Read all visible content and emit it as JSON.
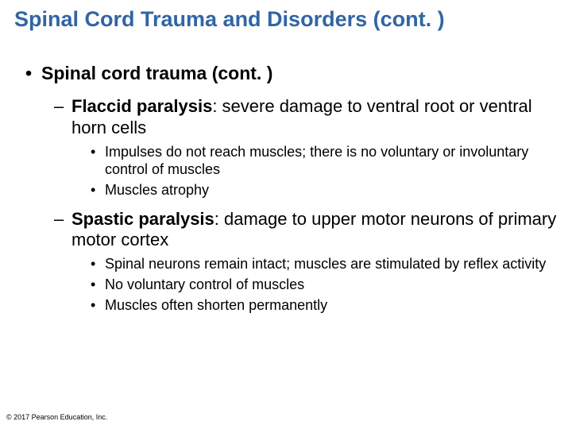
{
  "title": "Spinal Cord Trauma and Disorders (cont. )",
  "level1": {
    "text": "Spinal cord trauma (cont. )"
  },
  "flaccid": {
    "term": "Flaccid paralysis",
    "desc": ": severe damage to ventral root or ventral horn cells",
    "sub": [
      "Impulses do not reach muscles; there is no voluntary or involuntary control of muscles",
      "Muscles atrophy"
    ]
  },
  "spastic": {
    "term": "Spastic paralysis",
    "desc": ": damage to upper motor neurons of primary motor cortex",
    "sub": [
      "Spinal neurons remain intact; muscles are stimulated by reflex activity",
      "No voluntary control of muscles",
      "Muscles often shorten permanently"
    ]
  },
  "copyright": "© 2017 Pearson Education, Inc.",
  "colors": {
    "title": "#3165a4",
    "text": "#000000",
    "background": "#ffffff"
  },
  "fontsizes": {
    "title": 27,
    "l1": 23,
    "l2": 22,
    "l3": 18,
    "copyright": 9
  }
}
